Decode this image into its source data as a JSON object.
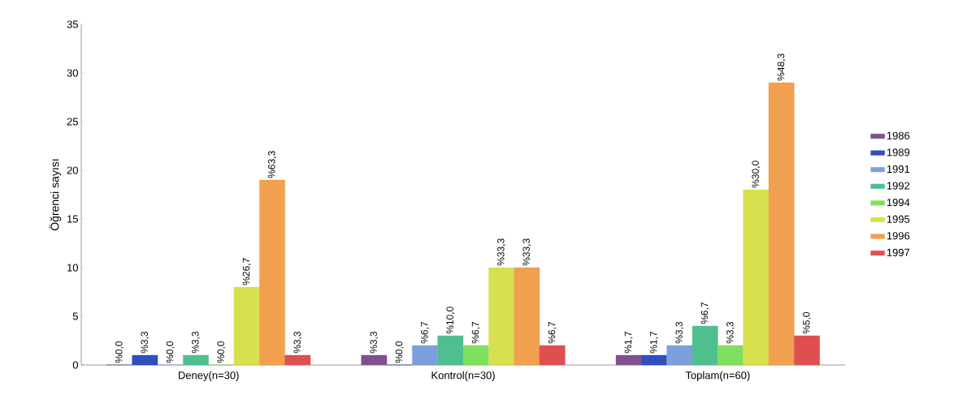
{
  "chart_data": {
    "type": "bar",
    "ylabel": "Öğrenci sayısı",
    "categories": [
      "Deney(n=30)",
      "Kontrol(n=30)",
      "Toplam(n=60)"
    ],
    "series": [
      {
        "name": "1986",
        "color": "#7f4f8f",
        "values": [
          0,
          1,
          1
        ]
      },
      {
        "name": "1989",
        "color": "#2f4fbf",
        "values": [
          1,
          0,
          1
        ]
      },
      {
        "name": "1991",
        "color": "#7ba0dc",
        "values": [
          0,
          2,
          2
        ]
      },
      {
        "name": "1992",
        "color": "#4fbf8f",
        "values": [
          1,
          3,
          4
        ]
      },
      {
        "name": "1994",
        "color": "#7fdf5f",
        "values": [
          0,
          2,
          2
        ]
      },
      {
        "name": "1995",
        "color": "#d7e04f",
        "values": [
          8,
          10,
          18
        ]
      },
      {
        "name": "1996",
        "color": "#f0a04f",
        "values": [
          19,
          10,
          29
        ]
      },
      {
        "name": "1997",
        "color": "#e04f4f",
        "values": [
          1,
          2,
          3
        ]
      }
    ],
    "annotations": [
      "%0,0",
      "%3,3",
      "%1,7",
      "%3,3",
      "%0,0",
      "%1,7",
      "%0,0",
      "%6,7",
      "%3,3",
      "%3,3",
      "%10,0",
      "%6,7",
      "%0,0",
      "%6,7",
      "%3,3",
      "%26,7",
      "%33,3",
      "%30,0",
      "%63,3",
      "%33,3",
      "%48,3",
      "%3,3",
      "%6,7",
      "%5,0"
    ],
    "ylim": [
      0,
      35
    ],
    "yticks": [
      0,
      5,
      10,
      15,
      20,
      25,
      30,
      35
    ],
    "grid": false,
    "legend": "right"
  }
}
